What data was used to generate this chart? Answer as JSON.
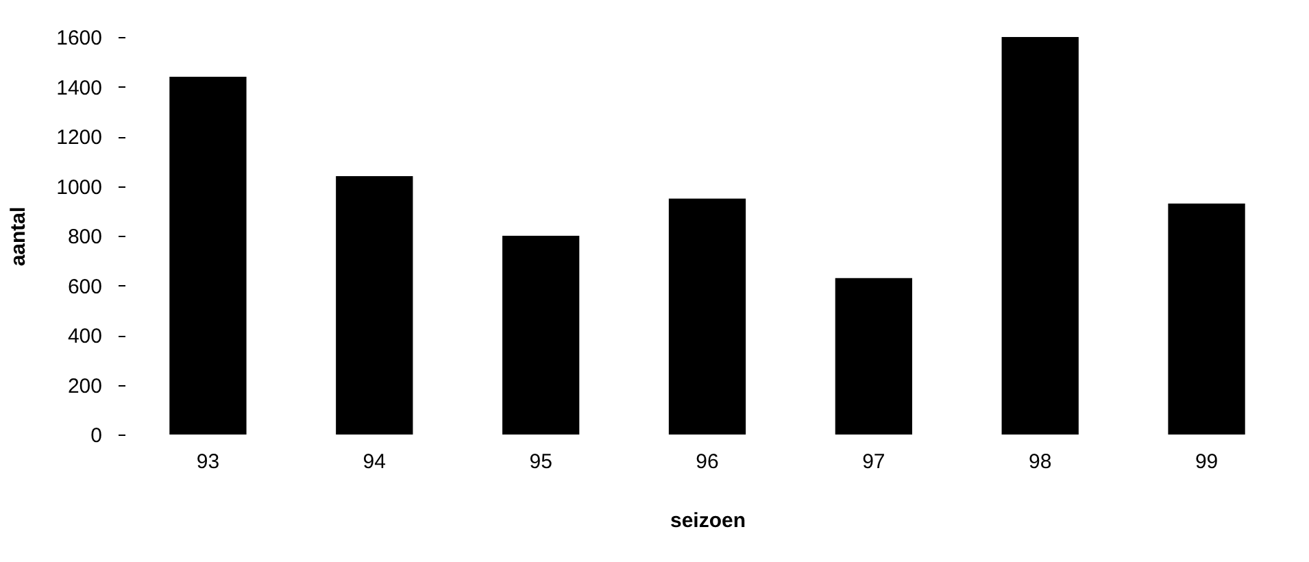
{
  "chart_data": {
    "type": "bar",
    "xlabel": "seizoen",
    "ylabel": "aantal",
    "categories": [
      "93",
      "94",
      "95",
      "96",
      "97",
      "98",
      "99"
    ],
    "values": [
      1440,
      1040,
      800,
      950,
      630,
      1600,
      930
    ],
    "color": "#000000",
    "ylim": [
      0,
      1600
    ],
    "yticks": [
      0,
      200,
      400,
      600,
      800,
      1000,
      1200,
      1400,
      1600
    ],
    "grid": false
  }
}
